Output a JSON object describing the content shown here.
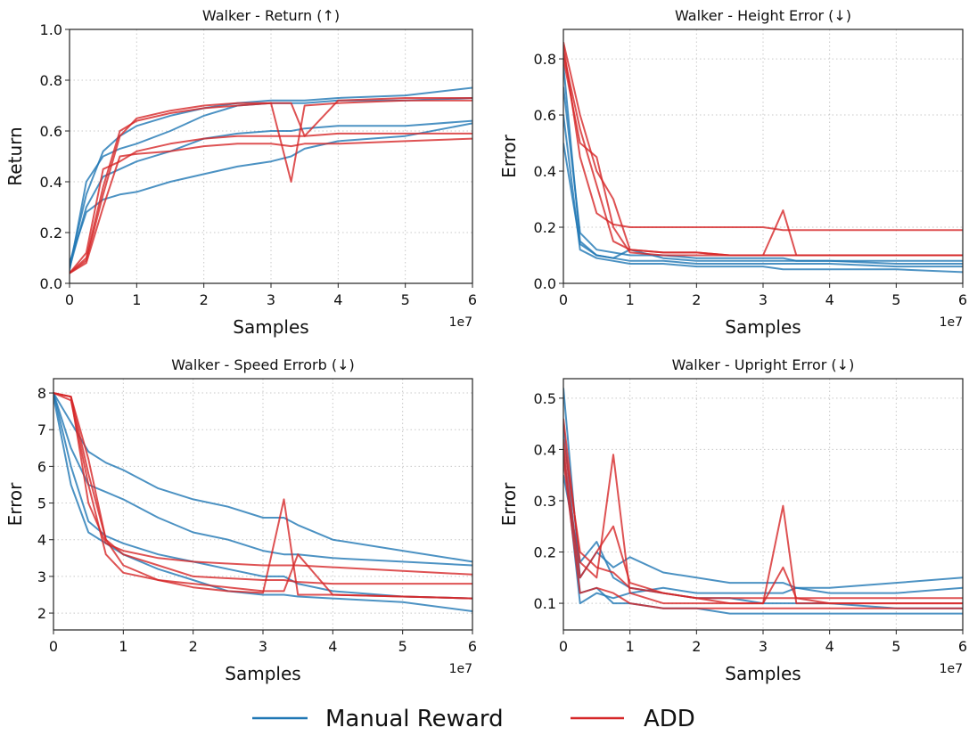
{
  "chart_data": [
    {
      "type": "line",
      "title": "Walker - Return (↑)",
      "xlabel": "Samples",
      "ylabel": "Return",
      "x_multiplier": "1e7",
      "xlim": [
        0,
        6
      ],
      "ylim": [
        0,
        1.0
      ],
      "xticks": [
        "0",
        "1",
        "2",
        "3",
        "4",
        "5",
        "6"
      ],
      "yticks": [
        "0.0",
        "0.2",
        "0.4",
        "0.6",
        "0.8",
        "1.0"
      ],
      "ytick_values": [
        0,
        0.2,
        0.4,
        0.6,
        0.8,
        1.0
      ],
      "grid": true,
      "x": [
        0,
        0.25,
        0.5,
        0.75,
        1,
        1.5,
        2,
        2.5,
        3,
        3.3,
        3.5,
        4,
        5,
        6
      ],
      "series": [
        {
          "group": "Manual Reward",
          "values": [
            0.07,
            0.35,
            0.52,
            0.58,
            0.62,
            0.66,
            0.69,
            0.71,
            0.72,
            0.72,
            0.72,
            0.73,
            0.74,
            0.77
          ]
        },
        {
          "group": "Manual Reward",
          "values": [
            0.06,
            0.3,
            0.42,
            0.45,
            0.48,
            0.52,
            0.57,
            0.59,
            0.6,
            0.6,
            0.61,
            0.62,
            0.62,
            0.64
          ]
        },
        {
          "group": "Manual Reward",
          "values": [
            0.08,
            0.28,
            0.33,
            0.35,
            0.36,
            0.4,
            0.43,
            0.46,
            0.48,
            0.5,
            0.53,
            0.56,
            0.58,
            0.63
          ]
        },
        {
          "group": "Manual Reward",
          "values": [
            0.05,
            0.4,
            0.5,
            0.53,
            0.55,
            0.6,
            0.66,
            0.7,
            0.71,
            0.71,
            0.71,
            0.72,
            0.72,
            0.73
          ]
        },
        {
          "group": "ADD",
          "values": [
            0.04,
            0.1,
            0.38,
            0.6,
            0.64,
            0.67,
            0.69,
            0.7,
            0.71,
            0.4,
            0.7,
            0.71,
            0.72,
            0.72
          ]
        },
        {
          "group": "ADD",
          "values": [
            0.04,
            0.08,
            0.3,
            0.5,
            0.51,
            0.52,
            0.54,
            0.55,
            0.55,
            0.54,
            0.55,
            0.55,
            0.56,
            0.57
          ]
        },
        {
          "group": "ADD",
          "values": [
            0.04,
            0.12,
            0.45,
            0.48,
            0.52,
            0.55,
            0.57,
            0.58,
            0.58,
            0.58,
            0.58,
            0.59,
            0.59,
            0.59
          ]
        },
        {
          "group": "ADD",
          "values": [
            0.04,
            0.09,
            0.35,
            0.58,
            0.65,
            0.68,
            0.7,
            0.71,
            0.71,
            0.71,
            0.58,
            0.72,
            0.73,
            0.73
          ]
        }
      ]
    },
    {
      "type": "line",
      "title": "Walker - Height Error (↓)",
      "xlabel": "Samples",
      "ylabel": "Error",
      "x_multiplier": "1e7",
      "xlim": [
        0,
        6
      ],
      "ylim": [
        0,
        0.905
      ],
      "xticks": [
        "0",
        "1",
        "2",
        "3",
        "4",
        "5",
        "6"
      ],
      "yticks": [
        "0.0",
        "0.2",
        "0.4",
        "0.6",
        "0.8"
      ],
      "ytick_values": [
        0,
        0.2,
        0.4,
        0.6,
        0.8
      ],
      "grid": true,
      "x": [
        0,
        0.25,
        0.5,
        0.75,
        1,
        1.5,
        2,
        2.5,
        3,
        3.3,
        3.5,
        4,
        5,
        6
      ],
      "series": [
        {
          "group": "Manual Reward",
          "values": [
            0.78,
            0.15,
            0.1,
            0.09,
            0.08,
            0.08,
            0.07,
            0.07,
            0.07,
            0.07,
            0.07,
            0.07,
            0.06,
            0.06
          ]
        },
        {
          "group": "Manual Reward",
          "values": [
            0.6,
            0.12,
            0.09,
            0.08,
            0.07,
            0.07,
            0.06,
            0.06,
            0.06,
            0.05,
            0.05,
            0.05,
            0.05,
            0.04
          ]
        },
        {
          "group": "Manual Reward",
          "values": [
            0.7,
            0.18,
            0.12,
            0.11,
            0.1,
            0.1,
            0.09,
            0.09,
            0.09,
            0.09,
            0.08,
            0.08,
            0.08,
            0.08
          ]
        },
        {
          "group": "Manual Reward",
          "values": [
            0.5,
            0.14,
            0.1,
            0.09,
            0.12,
            0.09,
            0.08,
            0.08,
            0.08,
            0.08,
            0.08,
            0.08,
            0.07,
            0.07
          ]
        },
        {
          "group": "ADD",
          "values": [
            0.86,
            0.6,
            0.4,
            0.3,
            0.12,
            0.11,
            0.11,
            0.1,
            0.1,
            0.26,
            0.1,
            0.1,
            0.1,
            0.1
          ]
        },
        {
          "group": "ADD",
          "values": [
            0.85,
            0.45,
            0.25,
            0.21,
            0.2,
            0.2,
            0.2,
            0.2,
            0.2,
            0.19,
            0.19,
            0.19,
            0.19,
            0.19
          ]
        },
        {
          "group": "ADD",
          "values": [
            0.8,
            0.5,
            0.45,
            0.2,
            0.11,
            0.1,
            0.1,
            0.1,
            0.1,
            0.1,
            0.1,
            0.1,
            0.1,
            0.1
          ]
        },
        {
          "group": "ADD",
          "values": [
            0.82,
            0.55,
            0.35,
            0.15,
            0.12,
            0.11,
            0.11,
            0.1,
            0.1,
            0.1,
            0.1,
            0.1,
            0.1,
            0.1
          ]
        }
      ]
    },
    {
      "type": "line",
      "title": "Walker - Speed Errorb (↓)",
      "xlabel": "Samples",
      "ylabel": "Error",
      "x_multiplier": "1e7",
      "xlim": [
        0,
        6
      ],
      "ylim": [
        1.54,
        8.39
      ],
      "xticks": [
        "0",
        "1",
        "2",
        "3",
        "4",
        "5",
        "6"
      ],
      "yticks": [
        "2",
        "3",
        "4",
        "5",
        "6",
        "7",
        "8"
      ],
      "ytick_values": [
        2,
        3,
        4,
        5,
        6,
        7,
        8
      ],
      "grid": true,
      "x": [
        0,
        0.25,
        0.5,
        0.75,
        1,
        1.5,
        2,
        2.5,
        3,
        3.3,
        3.5,
        4,
        5,
        6
      ],
      "series": [
        {
          "group": "Manual Reward",
          "values": [
            8,
            7.2,
            6.4,
            6.1,
            5.9,
            5.4,
            5.1,
            4.9,
            4.6,
            4.6,
            4.4,
            4.0,
            3.7,
            3.4
          ]
        },
        {
          "group": "Manual Reward",
          "values": [
            8,
            6.5,
            5.5,
            5.3,
            5.1,
            4.6,
            4.2,
            4.0,
            3.7,
            3.6,
            3.6,
            3.5,
            3.4,
            3.3
          ]
        },
        {
          "group": "Manual Reward",
          "values": [
            7.9,
            5.5,
            4.2,
            3.9,
            3.6,
            3.2,
            2.9,
            2.6,
            2.5,
            2.5,
            2.45,
            2.4,
            2.3,
            2.05
          ]
        },
        {
          "group": "Manual Reward",
          "values": [
            8,
            6.0,
            4.5,
            4.1,
            3.9,
            3.6,
            3.4,
            3.2,
            3.0,
            3.0,
            2.8,
            2.6,
            2.45,
            2.4
          ]
        },
        {
          "group": "ADD",
          "values": [
            8,
            7.9,
            6.2,
            4.0,
            3.3,
            2.9,
            2.7,
            2.6,
            2.55,
            5.1,
            2.5,
            2.5,
            2.45,
            2.4
          ]
        },
        {
          "group": "ADD",
          "values": [
            8,
            7.9,
            5.0,
            3.9,
            3.7,
            3.5,
            3.4,
            3.35,
            3.3,
            3.3,
            3.3,
            3.25,
            3.15,
            3.05
          ]
        },
        {
          "group": "ADD",
          "values": [
            8,
            7.8,
            5.5,
            3.6,
            3.1,
            2.9,
            2.8,
            2.7,
            2.6,
            2.6,
            3.6,
            2.5,
            2.45,
            2.4
          ]
        },
        {
          "group": "ADD",
          "values": [
            8,
            7.9,
            5.8,
            4.0,
            3.6,
            3.3,
            3.0,
            2.95,
            2.9,
            2.9,
            2.85,
            2.8,
            2.8,
            2.8
          ]
        }
      ]
    },
    {
      "type": "line",
      "title": "Walker - Upright Error (↓)",
      "xlabel": "Samples",
      "ylabel": "Error",
      "x_multiplier": "1e7",
      "xlim": [
        0,
        6
      ],
      "ylim": [
        0.048,
        0.538
      ],
      "xticks": [
        "0",
        "1",
        "2",
        "3",
        "4",
        "5",
        "6"
      ],
      "yticks": [
        "0.1",
        "0.2",
        "0.3",
        "0.4",
        "0.5"
      ],
      "ytick_values": [
        0.1,
        0.2,
        0.3,
        0.4,
        0.5
      ],
      "grid": true,
      "x": [
        0,
        0.25,
        0.5,
        0.75,
        1,
        1.5,
        2,
        2.5,
        3,
        3.3,
        3.5,
        4,
        5,
        6
      ],
      "series": [
        {
          "group": "Manual Reward",
          "values": [
            0.52,
            0.15,
            0.2,
            0.17,
            0.19,
            0.16,
            0.15,
            0.14,
            0.14,
            0.14,
            0.13,
            0.13,
            0.14,
            0.15
          ]
        },
        {
          "group": "Manual Reward",
          "values": [
            0.45,
            0.12,
            0.13,
            0.1,
            0.1,
            0.09,
            0.09,
            0.08,
            0.08,
            0.08,
            0.08,
            0.08,
            0.08,
            0.08
          ]
        },
        {
          "group": "Manual Reward",
          "values": [
            0.35,
            0.18,
            0.22,
            0.15,
            0.13,
            0.12,
            0.11,
            0.11,
            0.1,
            0.1,
            0.1,
            0.1,
            0.09,
            0.09
          ]
        },
        {
          "group": "Manual Reward",
          "values": [
            0.4,
            0.1,
            0.12,
            0.11,
            0.12,
            0.13,
            0.12,
            0.12,
            0.12,
            0.12,
            0.13,
            0.12,
            0.12,
            0.13
          ]
        },
        {
          "group": "ADD",
          "values": [
            0.46,
            0.18,
            0.15,
            0.39,
            0.12,
            0.1,
            0.1,
            0.1,
            0.1,
            0.29,
            0.1,
            0.1,
            0.1,
            0.1
          ]
        },
        {
          "group": "ADD",
          "values": [
            0.4,
            0.15,
            0.2,
            0.25,
            0.14,
            0.12,
            0.11,
            0.1,
            0.1,
            0.17,
            0.11,
            0.1,
            0.1,
            0.1
          ]
        },
        {
          "group": "ADD",
          "values": [
            0.38,
            0.12,
            0.13,
            0.12,
            0.1,
            0.09,
            0.09,
            0.09,
            0.09,
            0.09,
            0.09,
            0.09,
            0.09,
            0.09
          ]
        },
        {
          "group": "ADD",
          "values": [
            0.42,
            0.2,
            0.17,
            0.16,
            0.13,
            0.12,
            0.11,
            0.11,
            0.11,
            0.11,
            0.11,
            0.11,
            0.11,
            0.11
          ]
        }
      ]
    }
  ],
  "legend": {
    "placement": "bottom-center",
    "entries": [
      {
        "label": "Manual Reward",
        "color": "#1f77b4"
      },
      {
        "label": "ADD",
        "color": "#d62728"
      }
    ]
  }
}
